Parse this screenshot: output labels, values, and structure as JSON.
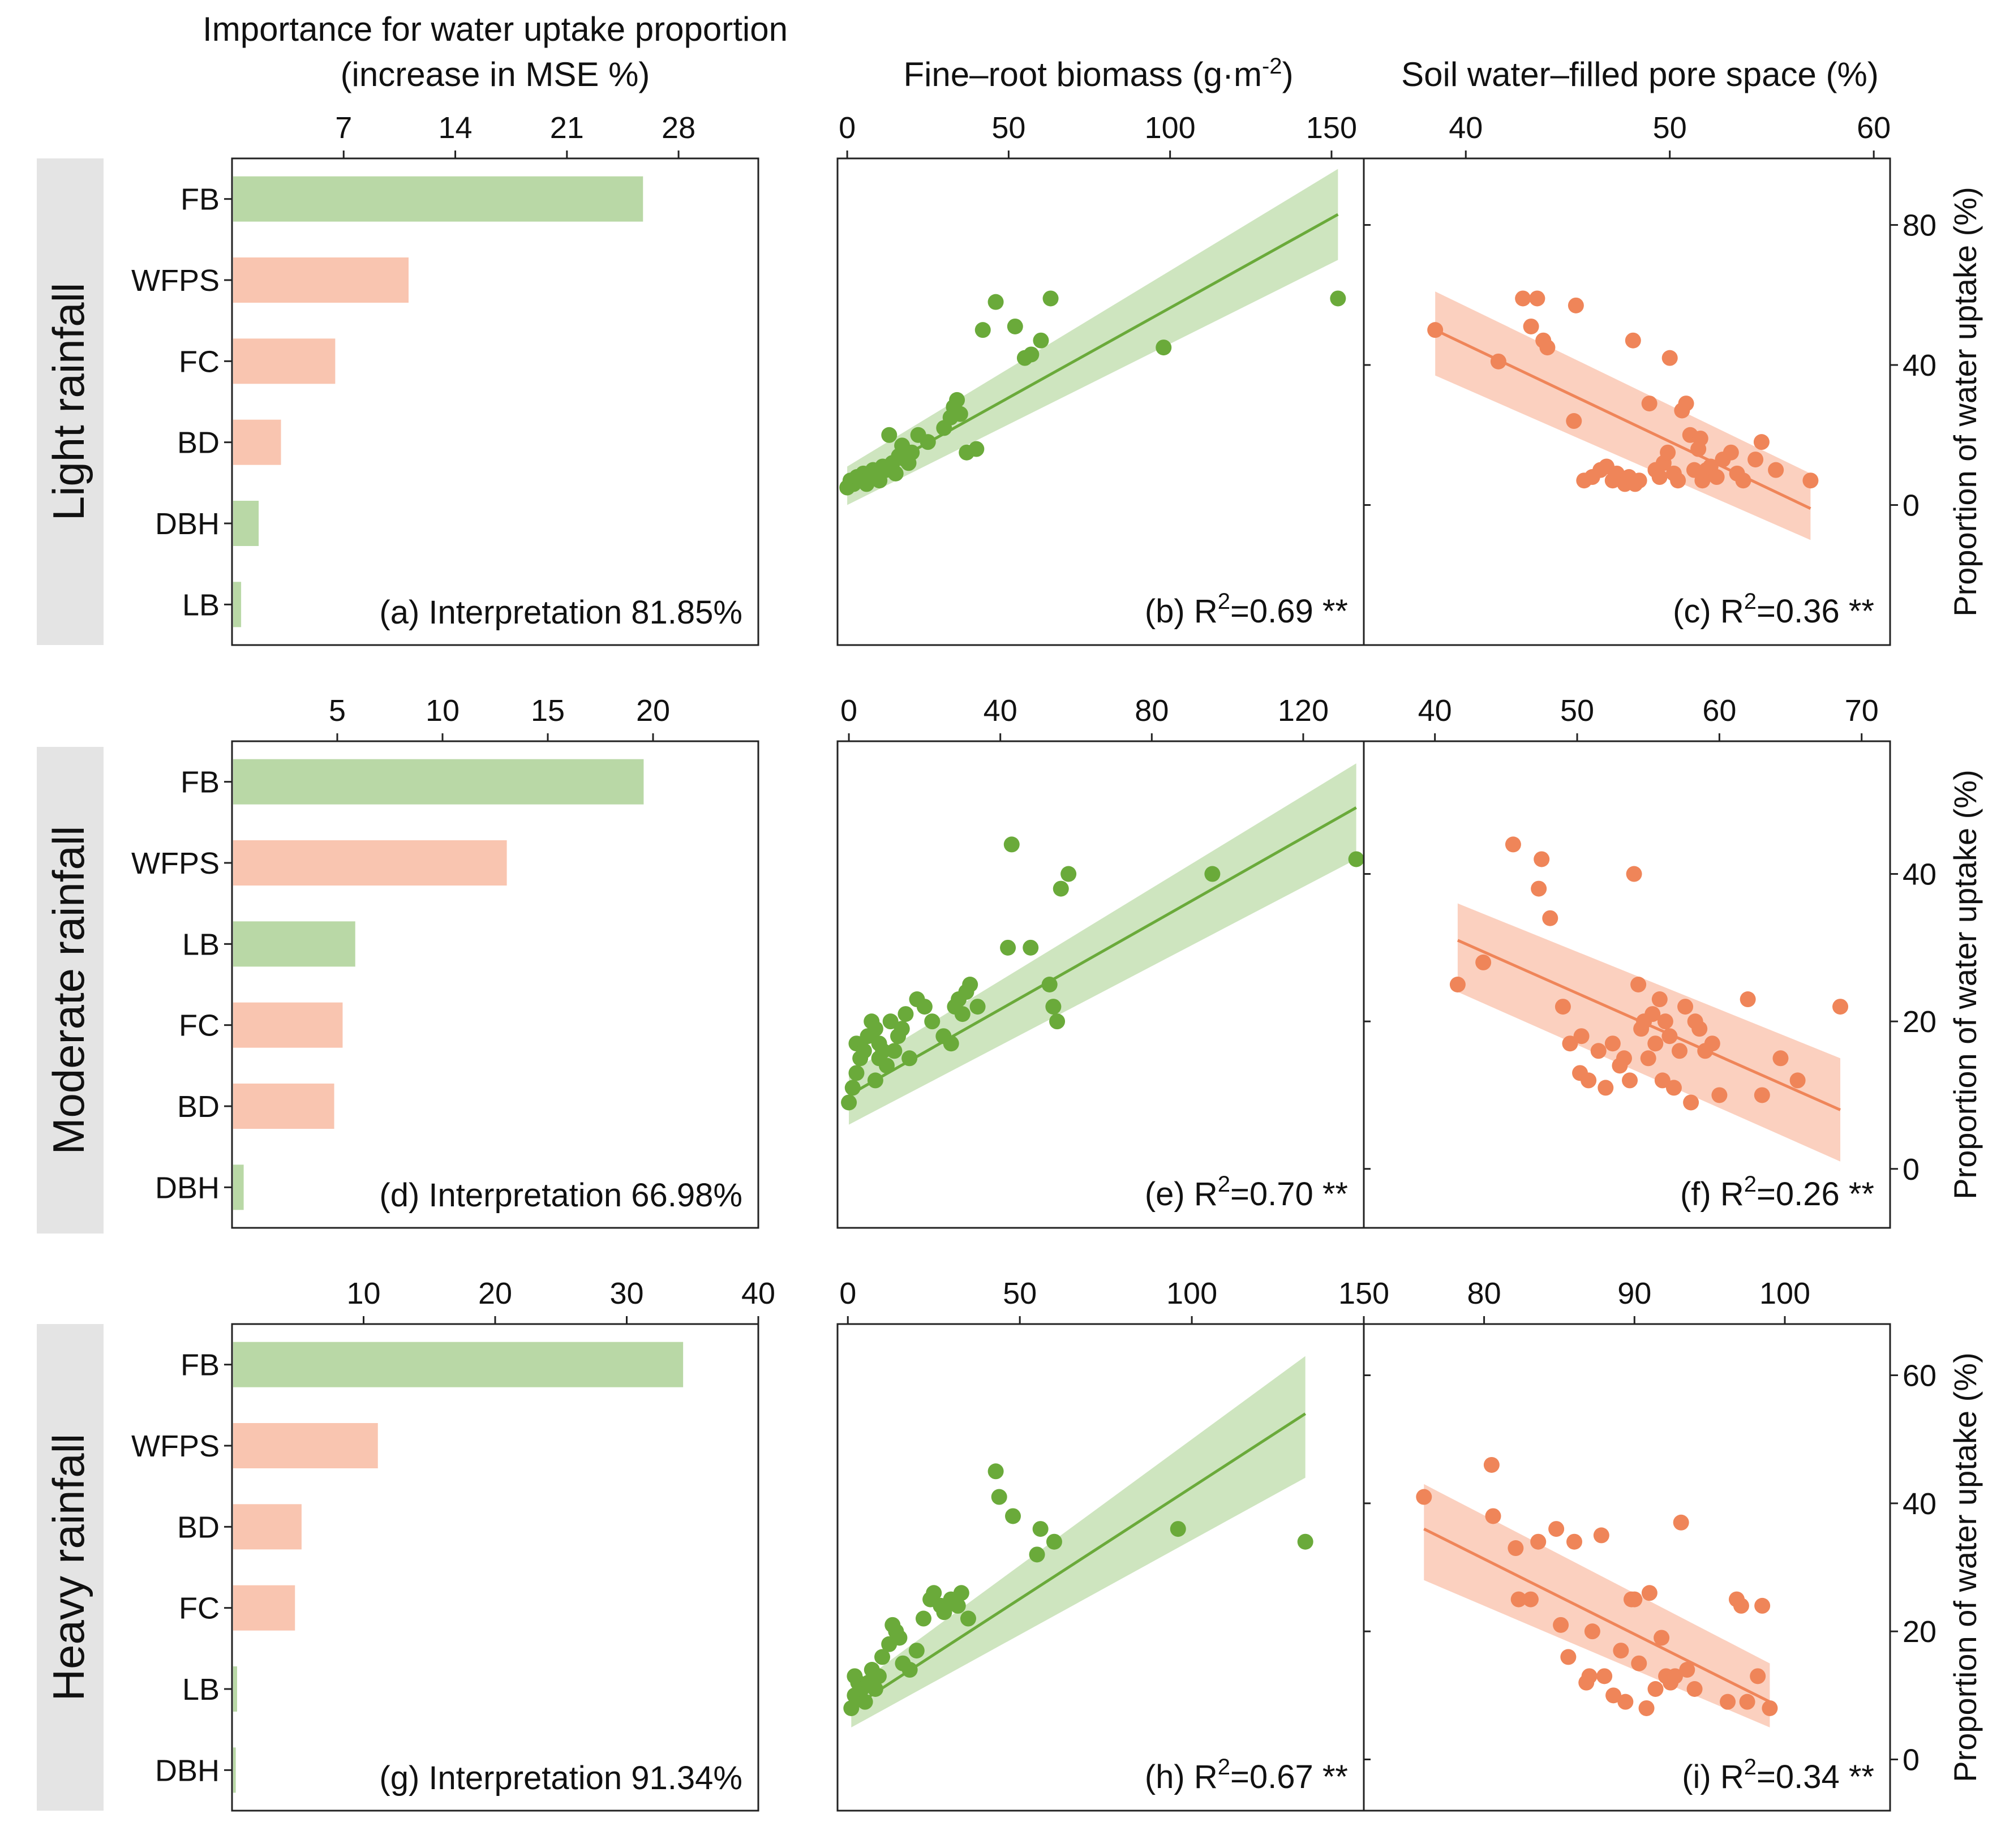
{
  "figure": {
    "rows": [
      {
        "key": "light",
        "label": "Light rainfall"
      },
      {
        "key": "moderate",
        "label": "Moderate rainfall"
      },
      {
        "key": "heavy",
        "label": "Heavy rainfall"
      }
    ],
    "header": {
      "importance_title_1": "Importance for water uptake proportion",
      "importance_title_2": "(increase in MSE %)",
      "fb_title": "Fine–root biomass (g·m",
      "fb_title_sup": "-2",
      "fb_title_end": ")",
      "wfps_title": "Soil water–filled pore space (%)",
      "right_ylabel": "Proportion of water uptake (%)"
    },
    "colors": {
      "fb_green": "#6aaa3a",
      "fb_green_bar": "#b9d8a6",
      "fb_green_band": "#c6e0b4",
      "wfps_orange": "#ef8559",
      "wfps_orange_bar": "#f9c5b0",
      "wfps_orange_band": "#fac8b4",
      "row_label_bg": "#e4e4e4",
      "axis": "#222222"
    }
  },
  "chart_data": [
    {
      "id": "a",
      "type": "bar",
      "orientation": "horizontal",
      "row": "light",
      "title": "Importance for water uptake proportion (increase in MSE %)",
      "categories": [
        "FB",
        "WFPS",
        "FC",
        "BD",
        "DBH",
        "LB"
      ],
      "values": [
        25.7,
        11.0,
        6.4,
        3.0,
        1.6,
        0.5
      ],
      "bar_groups": [
        "green",
        "orange",
        "orange",
        "orange",
        "green",
        "green"
      ],
      "xlim": [
        0,
        33
      ],
      "xticks": [
        7,
        14,
        21,
        28
      ],
      "annotation": "(a) Interpretation 81.85%"
    },
    {
      "id": "b",
      "type": "scatter",
      "row": "light",
      "color": "green",
      "xlabel": "Fine–root biomass (g·m-2)",
      "ylabel": "Proportion of water uptake (%)",
      "xlim": [
        -3,
        160
      ],
      "xticks": [
        0,
        50,
        100,
        150
      ],
      "ylim": [
        -40,
        99
      ],
      "yticks": [
        0,
        40,
        80
      ],
      "x": [
        0,
        1,
        2,
        3,
        4,
        5,
        6,
        7,
        8,
        9,
        10,
        11,
        12,
        13,
        14,
        15,
        16,
        17,
        18,
        19,
        20,
        22,
        25,
        30,
        32,
        33,
        34,
        35,
        37,
        40,
        42,
        46,
        52,
        55,
        57,
        60,
        63,
        98,
        152
      ],
      "y": [
        5,
        7,
        6,
        8,
        7,
        9,
        6,
        8,
        10,
        9,
        7,
        11,
        10,
        20,
        12,
        9,
        14,
        17,
        13,
        12,
        15,
        20,
        18,
        22,
        25,
        28,
        30,
        26,
        15,
        16,
        50,
        58,
        51,
        42,
        43,
        47,
        59,
        45,
        59
      ],
      "fit": {
        "x": [
          0,
          152
        ],
        "y": [
          5,
          83
        ],
        "ci_low": [
          0,
          70
        ],
        "ci_high": [
          11,
          96
        ]
      },
      "annotation": "(b) R",
      "annotation_sup": "2",
      "annotation_end": "=0.69 **"
    },
    {
      "id": "c",
      "type": "scatter",
      "row": "light",
      "color": "orange",
      "xlabel": "Soil water–filled pore space (%)",
      "ylabel": "Proportion of water uptake (%)",
      "xlim": [
        35,
        60.8
      ],
      "xticks": [
        40,
        50,
        60
      ],
      "ylim": [
        -40,
        99
      ],
      "yticks": [
        0,
        40,
        80
      ],
      "x": [
        38.5,
        41.6,
        42.8,
        43.2,
        43.5,
        43.8,
        44.0,
        45.3,
        45.4,
        45.8,
        46.2,
        46.6,
        46.9,
        47.2,
        47.4,
        47.8,
        48.0,
        48.2,
        48.3,
        48.5,
        49.0,
        49.3,
        49.5,
        49.7,
        49.9,
        50.0,
        50.2,
        50.4,
        50.6,
        50.8,
        51.0,
        51.2,
        51.4,
        51.5,
        51.6,
        51.8,
        52.0,
        52.3,
        52.6,
        53.0,
        53.3,
        53.6,
        54.2,
        54.5,
        55.2,
        56.9
      ],
      "y": [
        50,
        41,
        59,
        51,
        59,
        47,
        45,
        24,
        57,
        7,
        8,
        10,
        11,
        7,
        9,
        6,
        8,
        47,
        6,
        7,
        29,
        10,
        8,
        12,
        15,
        42,
        9,
        7,
        27,
        29,
        20,
        10,
        16,
        19,
        7,
        10,
        11,
        8,
        13,
        15,
        9,
        7,
        13,
        18,
        10,
        7
      ],
      "fit": {
        "x": [
          38.5,
          56.9
        ],
        "y": [
          50,
          -1
        ],
        "ci_low": [
          37,
          -10
        ],
        "ci_high": [
          61,
          9
        ]
      },
      "annotation": "(c) R",
      "annotation_sup": "2",
      "annotation_end": "=0.36 **"
    },
    {
      "id": "d",
      "type": "bar",
      "orientation": "horizontal",
      "row": "moderate",
      "title": "Importance for water uptake proportion (increase in MSE %)",
      "categories": [
        "FB",
        "WFPS",
        "LB",
        "FC",
        "BD",
        "DBH"
      ],
      "values": [
        19.5,
        13.0,
        5.8,
        5.2,
        4.8,
        0.5
      ],
      "bar_groups": [
        "green",
        "orange",
        "green",
        "orange",
        "orange",
        "green"
      ],
      "xlim": [
        0,
        25
      ],
      "xticks": [
        5,
        10,
        15,
        20
      ],
      "annotation": "(d) Interpretation 66.98%"
    },
    {
      "id": "e",
      "type": "scatter",
      "row": "moderate",
      "color": "green",
      "xlabel": "Fine–root biomass (g·m-2)",
      "ylabel": "Proportion of water uptake (%)",
      "xlim": [
        -3,
        136
      ],
      "xticks": [
        0,
        40,
        80,
        120
      ],
      "ylim": [
        -8,
        58
      ],
      "yticks": [
        0,
        20,
        40
      ],
      "x": [
        0,
        1,
        2,
        3,
        2,
        4,
        5,
        6,
        7,
        8,
        7,
        8,
        9,
        10,
        11,
        12,
        13,
        14,
        15,
        16,
        18,
        20,
        22,
        25,
        27,
        28,
        29,
        30,
        31,
        32,
        34,
        42,
        43,
        48,
        53,
        54,
        55,
        56,
        58,
        96,
        134
      ],
      "y": [
        9,
        11,
        13,
        15,
        17,
        16,
        18,
        20,
        12,
        15,
        19,
        17,
        16,
        14,
        20,
        16,
        18,
        19,
        21,
        15,
        23,
        22,
        20,
        18,
        17,
        22,
        23,
        21,
        24,
        25,
        22,
        30,
        44,
        30,
        25,
        22,
        20,
        38,
        40,
        40,
        42
      ],
      "fit": {
        "x": [
          0,
          134
        ],
        "y": [
          10,
          49
        ],
        "ci_low": [
          6,
          42
        ],
        "ci_high": [
          13,
          55
        ]
      },
      "annotation": "(e) R",
      "annotation_sup": "2",
      "annotation_end": "=0.70 **"
    },
    {
      "id": "f",
      "type": "scatter",
      "row": "moderate",
      "color": "orange",
      "xlabel": "Soil water–filled pore space (%)",
      "ylabel": "Proportion of water uptake (%)",
      "xlim": [
        35,
        72
      ],
      "xticks": [
        40,
        50,
        60,
        70
      ],
      "ylim": [
        -8,
        58
      ],
      "yticks": [
        0,
        20,
        40
      ],
      "x": [
        41.6,
        43.4,
        45.5,
        47.3,
        47.5,
        48.1,
        49.0,
        49.5,
        50.2,
        50.3,
        50.8,
        51.5,
        52.0,
        52.5,
        53.0,
        53.3,
        53.7,
        54.0,
        54.3,
        54.5,
        54.7,
        55.0,
        55.3,
        55.5,
        55.8,
        56.0,
        56.2,
        56.5,
        56.8,
        57.2,
        57.6,
        58.0,
        58.3,
        58.6,
        59.0,
        59.5,
        60.0,
        62.0,
        63.0,
        64.3,
        65.5,
        68.5
      ],
      "y": [
        25,
        28,
        44,
        38,
        42,
        34,
        22,
        17,
        13,
        18,
        12,
        16,
        11,
        17,
        14,
        15,
        12,
        40,
        25,
        19,
        20,
        15,
        21,
        17,
        23,
        12,
        20,
        18,
        11,
        16,
        22,
        9,
        20,
        19,
        16,
        17,
        10,
        23,
        10,
        15,
        12,
        22
      ],
      "fit": {
        "x": [
          41.6,
          68.5
        ],
        "y": [
          31,
          8
        ],
        "ci_low": [
          24,
          1
        ],
        "ci_high": [
          36,
          15
        ]
      },
      "annotation": "(f) R",
      "annotation_sup": "2",
      "annotation_end": "=0.26 **"
    },
    {
      "id": "g",
      "type": "bar",
      "orientation": "horizontal",
      "row": "heavy",
      "title": "Importance for water uptake proportion (increase in MSE %)",
      "categories": [
        "FB",
        "WFPS",
        "BD",
        "FC",
        "LB",
        "DBH"
      ],
      "values": [
        34.2,
        11.0,
        5.2,
        4.7,
        0.3,
        0.2
      ],
      "bar_groups": [
        "green",
        "orange",
        "orange",
        "orange",
        "green",
        "green"
      ],
      "xlim": [
        0,
        40
      ],
      "xticks": [
        10,
        20,
        30,
        40
      ],
      "annotation": "(g) Interpretation 91.34%"
    },
    {
      "id": "h",
      "type": "scatter",
      "row": "heavy",
      "color": "green",
      "xlabel": "Fine–root biomass (g·m-2)",
      "ylabel": "Proportion of water uptake (%)",
      "xlim": [
        -3,
        150
      ],
      "xticks": [
        0,
        50,
        100,
        150
      ],
      "ylim": [
        -8,
        68
      ],
      "yticks": [
        0,
        20,
        40,
        60
      ],
      "x": [
        1,
        2,
        3,
        4,
        2,
        5,
        6,
        7,
        8,
        9,
        10,
        12,
        13,
        14,
        15,
        16,
        18,
        20,
        22,
        24,
        25,
        27,
        28,
        30,
        32,
        33,
        35,
        43,
        44,
        48,
        55,
        56,
        60,
        96,
        133
      ],
      "y": [
        8,
        10,
        12,
        11,
        13,
        9,
        12,
        14,
        11,
        13,
        16,
        18,
        21,
        20,
        19,
        15,
        14,
        17,
        22,
        25,
        26,
        24,
        23,
        25,
        24,
        26,
        22,
        45,
        41,
        38,
        32,
        36,
        34,
        36,
        34
      ],
      "fit": {
        "x": [
          1,
          133
        ],
        "y": [
          8,
          54
        ],
        "ci_low": [
          5,
          44
        ],
        "ci_high": [
          11,
          63
        ]
      },
      "annotation": "(h) R",
      "annotation_sup": "2",
      "annotation_end": "=0.67 **"
    },
    {
      "id": "i",
      "type": "scatter",
      "row": "heavy",
      "color": "orange",
      "xlabel": "Soil water–filled pore space (%)",
      "ylabel": "Proportion of water uptake (%)",
      "xlim": [
        72,
        107
      ],
      "xticks": [
        80,
        90,
        100
      ],
      "ylim": [
        -8,
        68
      ],
      "yticks": [
        0,
        20,
        40,
        60
      ],
      "x": [
        76.0,
        80.5,
        80.6,
        82.1,
        82.3,
        83.1,
        83.6,
        84.8,
        85.1,
        85.6,
        86.0,
        86.8,
        87.0,
        87.2,
        87.8,
        88.0,
        88.6,
        89.1,
        89.4,
        89.8,
        90.0,
        90.3,
        90.8,
        91.0,
        91.4,
        91.8,
        92.1,
        92.4,
        92.7,
        93.1,
        93.5,
        94.0,
        96.2,
        96.8,
        97.1,
        97.5,
        98.2,
        98.5,
        99.0
      ],
      "y": [
        41,
        46,
        38,
        33,
        25,
        25,
        34,
        36,
        21,
        16,
        34,
        12,
        13,
        20,
        35,
        13,
        10,
        17,
        9,
        25,
        25,
        15,
        8,
        26,
        11,
        19,
        13,
        12,
        13,
        37,
        14,
        11,
        9,
        25,
        24,
        9,
        13,
        24,
        8
      ],
      "fit": {
        "x": [
          76.0,
          99.0
        ],
        "y": [
          36,
          9
        ],
        "ci_low": [
          28,
          5
        ],
        "ci_high": [
          43,
          15
        ]
      },
      "annotation": "(i) R",
      "annotation_sup": "2",
      "annotation_end": "=0.34 **"
    }
  ]
}
